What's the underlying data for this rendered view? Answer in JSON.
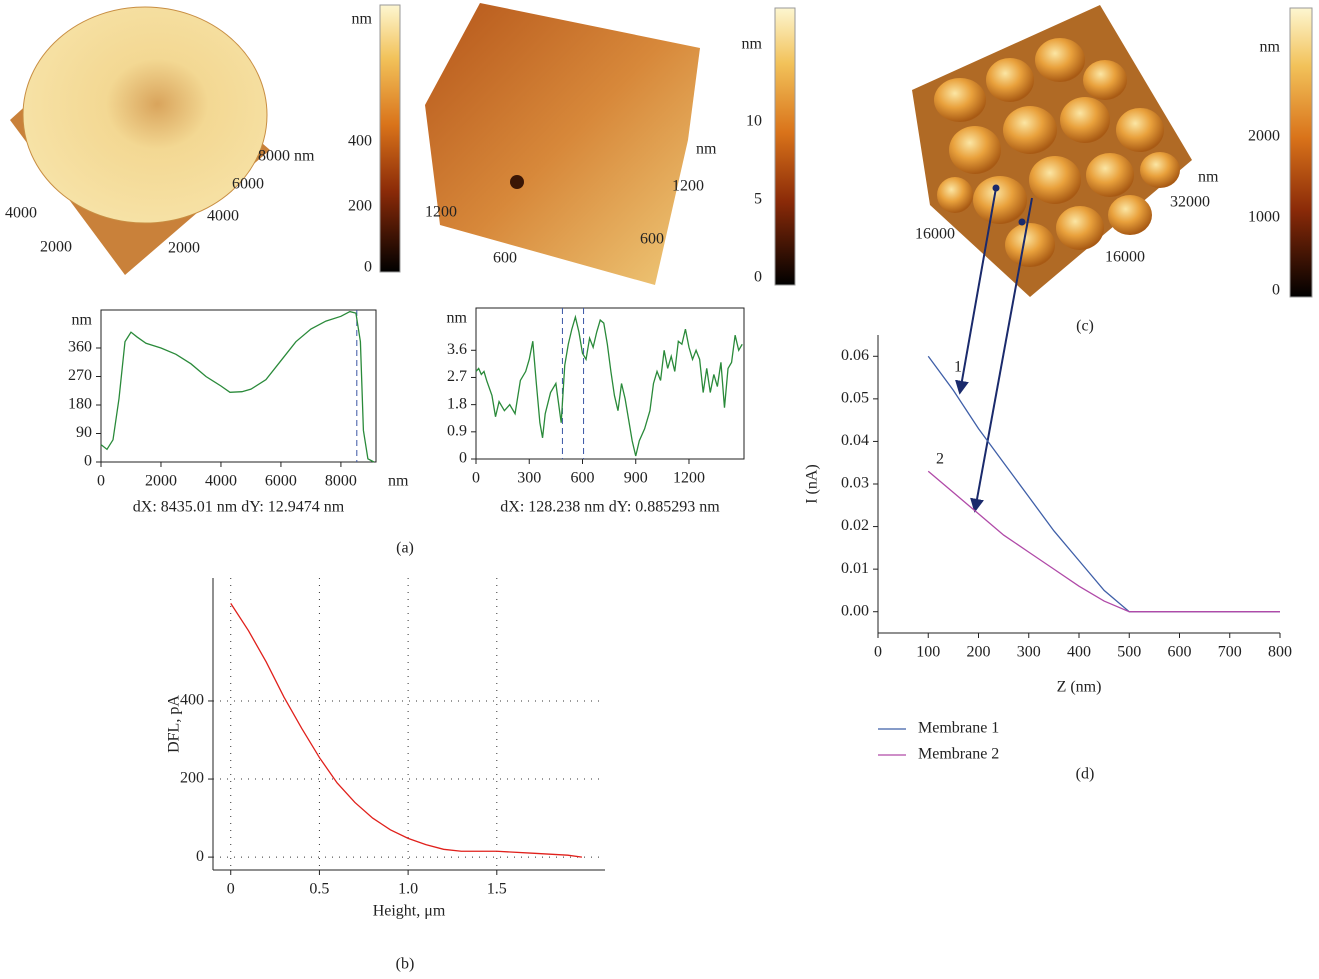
{
  "panel_labels": [
    "(a)",
    "(b)",
    "(c)",
    "(d)"
  ],
  "images": [
    {
      "right_axis": [
        "8000 nm",
        "6000",
        "4000",
        "2000"
      ],
      "left_axis": [
        "4000",
        "2000"
      ],
      "colorbar": [
        "nm",
        "400",
        "200",
        "0"
      ]
    },
    {
      "right_axis": [
        "nm",
        "1200",
        "600"
      ],
      "left_axis": [
        "1200",
        "600"
      ],
      "colorbar": [
        "nm",
        "10",
        "5",
        "0"
      ]
    },
    {
      "right_axis": [
        "nm",
        "32000",
        "16000"
      ],
      "left_axis": [
        "16000"
      ],
      "colorbar": [
        "nm",
        "2000",
        "1000",
        "0"
      ]
    }
  ],
  "chart_data": [
    {
      "type": "line",
      "frame": true,
      "y_unit": "nm",
      "x_unit": "nm",
      "caption": "dX: 8435.01 nm dY: 12.9474 nm",
      "xlim": [
        0,
        9170
      ],
      "ylim": [
        0,
        480
      ],
      "xticks": [
        0,
        2000,
        4000,
        6000,
        8000
      ],
      "yticks": [
        0,
        90,
        180,
        270,
        360
      ],
      "cursors": [
        8530
      ],
      "x": [
        0,
        200,
        400,
        600,
        800,
        1000,
        1200,
        1500,
        2000,
        2500,
        3000,
        3500,
        4000,
        4300,
        4700,
        5000,
        5500,
        6000,
        6500,
        7000,
        7500,
        8000,
        8300,
        8500,
        8650,
        8750,
        8900,
        9100
      ],
      "series": [
        {
          "color": "#2a8a3a",
          "values": [
            55,
            40,
            70,
            200,
            380,
            410,
            395,
            375,
            360,
            340,
            310,
            270,
            240,
            220,
            222,
            230,
            260,
            320,
            380,
            420,
            445,
            460,
            475,
            470,
            380,
            100,
            10,
            0
          ]
        }
      ]
    },
    {
      "type": "line",
      "frame": true,
      "y_unit": "nm",
      "caption": "dX: 128.238 nm dY: 0.885293 nm",
      "xlim": [
        0,
        1510
      ],
      "ylim": [
        0,
        5
      ],
      "xticks": [
        0,
        300,
        600,
        900,
        1200
      ],
      "yticks": [
        0,
        0.9,
        1.8,
        2.7,
        3.6
      ],
      "cursors": [
        487,
        606
      ],
      "x": [
        0,
        15,
        30,
        45,
        60,
        90,
        110,
        130,
        160,
        190,
        220,
        250,
        280,
        300,
        320,
        340,
        360,
        375,
        390,
        420,
        450,
        480,
        500,
        520,
        540,
        560,
        580,
        600,
        620,
        640,
        660,
        680,
        700,
        720,
        740,
        760,
        780,
        800,
        820,
        840,
        860,
        880,
        900,
        920,
        950,
        980,
        1000,
        1020,
        1040,
        1060,
        1080,
        1100,
        1120,
        1140,
        1160,
        1180,
        1200,
        1220,
        1240,
        1260,
        1280,
        1300,
        1320,
        1340,
        1360,
        1380,
        1400,
        1420,
        1440,
        1460,
        1480,
        1500
      ],
      "series": [
        {
          "color": "#2a8a3a",
          "values": [
            2.9,
            3.0,
            2.8,
            2.9,
            2.6,
            2.1,
            1.4,
            1.9,
            1.6,
            1.8,
            1.5,
            2.6,
            2.9,
            3.3,
            3.9,
            2.5,
            1.2,
            0.7,
            1.5,
            2.2,
            2.5,
            1.2,
            3.1,
            3.8,
            4.3,
            4.7,
            4.2,
            3.5,
            3.3,
            4.0,
            3.7,
            4.2,
            4.6,
            4.5,
            3.8,
            2.9,
            2.1,
            1.6,
            2.5,
            2.0,
            1.3,
            0.6,
            0.1,
            0.6,
            1.0,
            1.6,
            2.5,
            2.9,
            2.6,
            3.6,
            3.0,
            3.4,
            2.9,
            3.9,
            3.8,
            4.3,
            3.7,
            3.3,
            3.6,
            3.3,
            2.2,
            3.0,
            2.2,
            2.8,
            2.4,
            3.2,
            1.7,
            3.0,
            3.2,
            4.1,
            3.6,
            3.8
          ]
        }
      ]
    },
    {
      "type": "line",
      "grid": true,
      "xlabel": "Height, μm",
      "ylabel": "DFL, pA",
      "xlim": [
        -0.1,
        2.11
      ],
      "ylim": [
        -33,
        715
      ],
      "xticks": [
        0,
        0.5,
        {
          "value": 1,
          "label": "1.0"
        },
        1.5
      ],
      "yticks": [
        0,
        200,
        400
      ],
      "x": [
        0,
        0.1,
        0.2,
        0.3,
        0.4,
        0.5,
        0.6,
        0.7,
        0.8,
        0.9,
        1.0,
        1.1,
        1.2,
        1.3,
        1.5,
        1.7,
        1.9,
        1.98
      ],
      "series": [
        {
          "color": "#e0201b",
          "values": [
            650,
            580,
            500,
            410,
            330,
            255,
            190,
            140,
            100,
            70,
            48,
            32,
            20,
            15,
            15,
            10,
            5,
            0
          ]
        }
      ]
    },
    {
      "type": "line",
      "xlabel": "Z (nm)",
      "ylabel": "I (nA)",
      "legend": "bottom",
      "annotations": [
        "1",
        "2"
      ],
      "xlim": [
        0,
        800
      ],
      "ylim": [
        -0.005,
        0.065
      ],
      "xticks": [
        0,
        100,
        200,
        300,
        400,
        500,
        600,
        700,
        800
      ],
      "yticks": [
        {
          "value": 0,
          "label": "0.00"
        },
        {
          "value": 0.01,
          "label": "0.01"
        },
        {
          "value": 0.02,
          "label": "0.02"
        },
        {
          "value": 0.03,
          "label": "0.03"
        },
        {
          "value": 0.04,
          "label": "0.04"
        },
        {
          "value": 0.05,
          "label": "0.05"
        },
        {
          "value": 0.06,
          "label": "0.06"
        }
      ],
      "x": [
        100,
        150,
        200,
        250,
        300,
        350,
        400,
        450,
        500,
        600,
        700,
        800
      ],
      "series": [
        {
          "name": "Membrane 1",
          "color": "#3f5fa8",
          "values": [
            0.06,
            0.052,
            0.043,
            0.035,
            0.027,
            0.019,
            0.012,
            0.005,
            0,
            0,
            0,
            0
          ]
        },
        {
          "name": "Membrane 2",
          "color": "#b04aa8",
          "values": [
            0.033,
            0.028,
            0.023,
            0.018,
            0.014,
            0.01,
            0.006,
            0.0025,
            0,
            0,
            0,
            0
          ]
        }
      ]
    }
  ]
}
